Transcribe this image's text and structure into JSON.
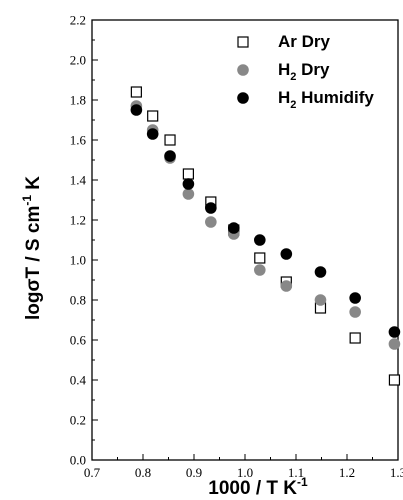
{
  "chart_data": {
    "type": "scatter",
    "xlabel": {
      "main": "1000 / T K",
      "sup": "-1"
    },
    "ylabel": {
      "pre": "log",
      "sigma": "σ",
      "mid": "T / S cm",
      "sup": "-1",
      "post": " K"
    },
    "xlim": [
      0.7,
      1.3
    ],
    "ylim": [
      0.0,
      2.2
    ],
    "xticks": [
      0.7,
      0.8,
      0.9,
      1.0,
      1.1,
      1.2,
      1.3
    ],
    "xtick_labels": [
      "0.7",
      "0.8",
      "0.9",
      "1.0",
      "1.1",
      "1.2",
      "1.3"
    ],
    "yticks": [
      0.0,
      0.2,
      0.4,
      0.6,
      0.8,
      1.0,
      1.2,
      1.4,
      1.6,
      1.8,
      2.0,
      2.2
    ],
    "ytick_labels": [
      "0.0",
      "0.2",
      "0.4",
      "0.6",
      "0.8",
      "1.0",
      "1.2",
      "1.4",
      "1.6",
      "1.8",
      "2.0",
      "2.2"
    ],
    "grid": false,
    "legend_position": "top-right",
    "series": [
      {
        "name": "Ar Dry",
        "legend": {
          "main": "Ar Dry",
          "sub": ""
        },
        "marker": "square-open",
        "color": "#000000",
        "x": [
          0.787,
          0.819,
          0.853,
          0.889,
          0.933,
          0.978,
          1.029,
          1.081,
          1.148,
          1.216,
          1.293
        ],
        "y": [
          1.84,
          1.72,
          1.6,
          1.43,
          1.29,
          1.15,
          1.01,
          0.89,
          0.76,
          0.61,
          0.4
        ]
      },
      {
        "name": "H2 Dry",
        "legend": {
          "main": "H",
          "sub": "2",
          "rest": " Dry"
        },
        "marker": "circle",
        "color": "#888888",
        "x": [
          0.787,
          0.819,
          0.853,
          0.889,
          0.933,
          0.978,
          1.029,
          1.081,
          1.148,
          1.216,
          1.293
        ],
        "y": [
          1.77,
          1.65,
          1.51,
          1.33,
          1.19,
          1.13,
          0.95,
          0.87,
          0.8,
          0.74,
          0.58
        ]
      },
      {
        "name": "H2 Humidify",
        "legend": {
          "main": "H",
          "sub": "2",
          "rest": " Humidify"
        },
        "marker": "circle",
        "color": "#000000",
        "x": [
          0.787,
          0.819,
          0.853,
          0.889,
          0.933,
          0.978,
          1.029,
          1.081,
          1.148,
          1.216,
          1.293
        ],
        "y": [
          1.75,
          1.63,
          1.52,
          1.38,
          1.26,
          1.16,
          1.1,
          1.03,
          0.94,
          0.81,
          0.64
        ]
      }
    ]
  }
}
